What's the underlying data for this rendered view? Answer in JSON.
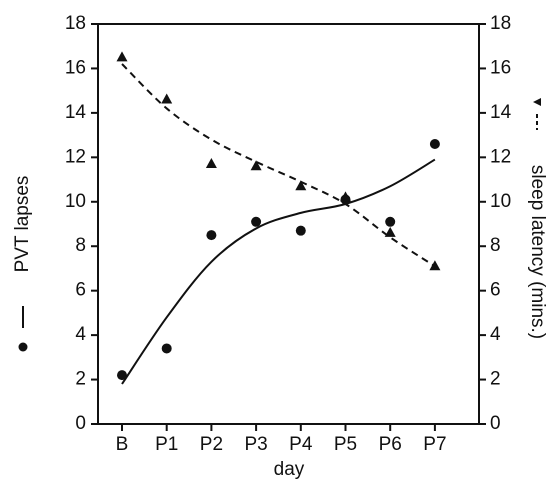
{
  "chart_data": {
    "type": "line",
    "categories": [
      "B",
      "P1",
      "P2",
      "P3",
      "P4",
      "P5",
      "P6",
      "P7"
    ],
    "xlabel": "day",
    "ylabel_left": "PVT lapses",
    "ylabel_right": "sleep latency (mins.)",
    "ylim_left": [
      0,
      18
    ],
    "ylim_right": [
      0,
      18
    ],
    "yticks": [
      "0",
      "2",
      "4",
      "6",
      "8",
      "10",
      "12",
      "14",
      "16",
      "18"
    ],
    "grid": false,
    "legend": "inline-axis-labels",
    "series": [
      {
        "name": "PVT lapses",
        "axis": "left",
        "marker": "circle",
        "line_style": "solid",
        "values": [
          2.2,
          3.4,
          8.5,
          9.1,
          8.7,
          10.1,
          9.1,
          12.6
        ],
        "fit": [
          1.8,
          4.8,
          7.3,
          8.8,
          9.5,
          9.9,
          10.7,
          11.9
        ]
      },
      {
        "name": "sleep latency (mins.)",
        "axis": "right",
        "marker": "triangle",
        "line_style": "dashed",
        "values": [
          16.5,
          14.6,
          11.7,
          11.6,
          10.7,
          10.2,
          8.6,
          7.1
        ],
        "fit": [
          16.2,
          14.2,
          12.8,
          11.8,
          10.9,
          9.9,
          8.4,
          7.1
        ]
      }
    ]
  }
}
